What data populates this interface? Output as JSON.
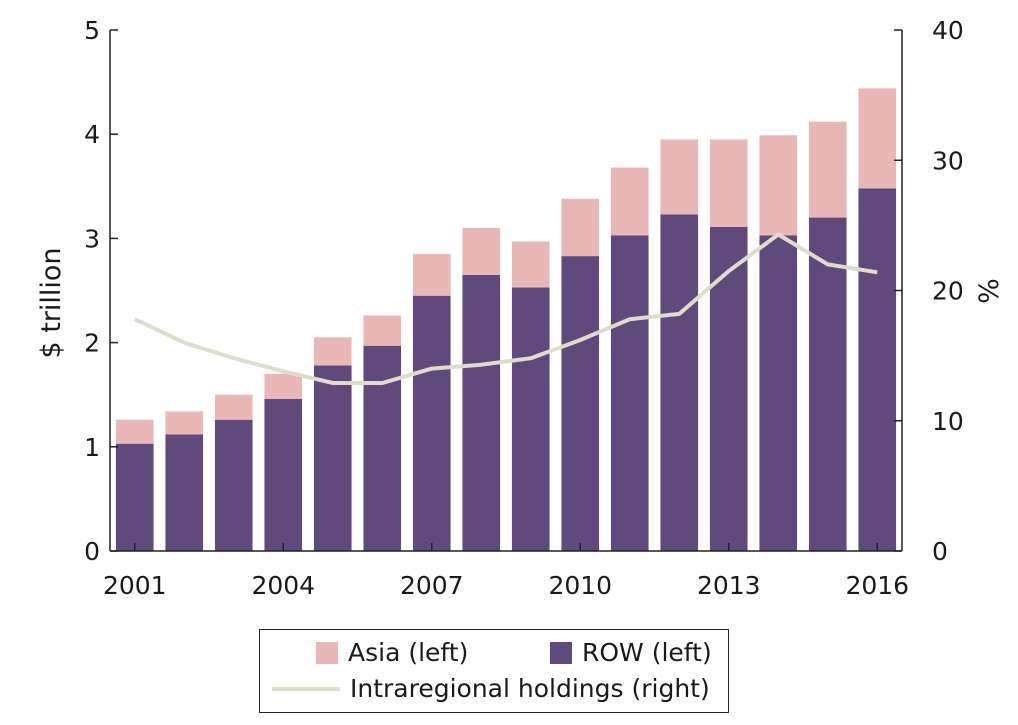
{
  "chart_data": {
    "type": "bar",
    "stacked": true,
    "categories": [
      "2001",
      "2002",
      "2003",
      "2004",
      "2005",
      "2006",
      "2007",
      "2008",
      "2009",
      "2010",
      "2011",
      "2012",
      "2013",
      "2014",
      "2015",
      "2016"
    ],
    "x_tick_labels": [
      "2001",
      "2004",
      "2007",
      "2010",
      "2013",
      "2016"
    ],
    "series": [
      {
        "name": "ROW (left)",
        "axis": "left",
        "type": "bar",
        "color": "#604a7b",
        "values": [
          1.03,
          1.12,
          1.26,
          1.46,
          1.78,
          1.97,
          2.45,
          2.65,
          2.53,
          2.83,
          3.03,
          3.23,
          3.11,
          3.03,
          3.2,
          3.48
        ]
      },
      {
        "name": "Asia (left)",
        "axis": "left",
        "type": "bar",
        "color": "#e8b7b7",
        "values": [
          0.23,
          0.22,
          0.24,
          0.24,
          0.27,
          0.29,
          0.4,
          0.45,
          0.44,
          0.55,
          0.65,
          0.72,
          0.84,
          0.96,
          0.92,
          0.96
        ]
      },
      {
        "name": "Intraregional holdings (right)",
        "axis": "right",
        "type": "line",
        "color": "#e0dccd",
        "values": [
          17.8,
          16.0,
          14.8,
          13.8,
          12.9,
          12.9,
          14.0,
          14.3,
          14.8,
          16.2,
          17.8,
          18.2,
          21.5,
          24.3,
          22.0,
          21.4
        ]
      }
    ],
    "ylabel": "$ trillion",
    "ylabel_right": "%",
    "ylim": [
      0,
      5
    ],
    "ylim_right": [
      0,
      40
    ],
    "yticks": [
      "0",
      "1",
      "2",
      "3",
      "4",
      "5"
    ],
    "yticks_right": [
      "0",
      "10",
      "20",
      "30",
      "40"
    ],
    "grid": false,
    "legend_position": "bottom"
  },
  "legend": {
    "asia": "Asia (left)",
    "row": "ROW (left)",
    "intra": "Intraregional holdings (right)"
  }
}
